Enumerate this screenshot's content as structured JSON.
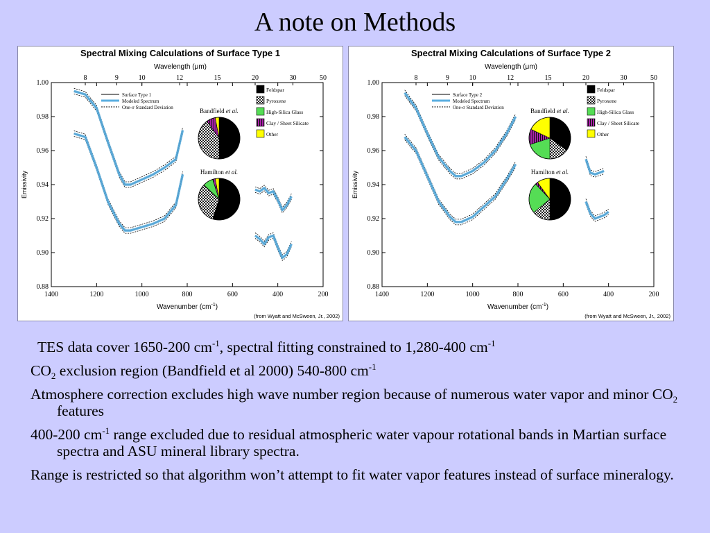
{
  "slide": {
    "title": "A note on Methods"
  },
  "colors": {
    "background": "#ccccff",
    "modeled_line": "#5aaee0",
    "feldspar": "#000000",
    "pyroxene": "#888888",
    "high_silica_glass": "#55dd55",
    "clay_sheet_silicate": "#aa22aa",
    "other": "#ffff00"
  },
  "legend": {
    "surface_prefix": "Surface Type",
    "modeled": "Modeled Spectrum",
    "std": "One-σ Standard Deviation"
  },
  "mineral_legend": [
    "Feldspar",
    "Pyroxene",
    "High-Silica Glass",
    "Clay / Sheet Silicate",
    "Other"
  ],
  "axis": {
    "top_label": "Wavelength (μm)",
    "bottom_label": "Wavenumber (cm",
    "bottom_label_sup": "-1",
    "bottom_label_end": ")",
    "y_label": "Emissivity",
    "source": "(from Wyatt and McSween, Jr., 2002)",
    "bandfield": "Bandfield",
    "hamilton": "Hamilton",
    "et_al": "et al."
  },
  "chart_data": [
    {
      "type": "line",
      "title": "Spectral Mixing Calculations of Surface Type 1",
      "surface_number": "1",
      "xlabel": "Wavenumber (cm-1)",
      "x2label": "Wavelength (μm)",
      "ylabel": "Emissivity",
      "xlim": [
        1400,
        200
      ],
      "ylim": [
        0.88,
        1.0
      ],
      "x_ticks": [
        1400,
        1200,
        1000,
        800,
        600,
        400,
        200
      ],
      "y_ticks": [
        "0.88",
        "0.90",
        "0.92",
        "0.94",
        "0.96",
        "0.98",
        "1.00"
      ],
      "wavelength_ticks": [
        8,
        9,
        10,
        12,
        15,
        20,
        30,
        50
      ],
      "segments": [
        {
          "name": "Bandfield",
          "x": [
            1300,
            1250,
            1200,
            1150,
            1100,
            1075,
            1050,
            1000,
            950,
            900,
            850,
            820
          ],
          "y": [
            0.995,
            0.993,
            0.985,
            0.965,
            0.946,
            0.94,
            0.94,
            0.943,
            0.946,
            0.95,
            0.955,
            0.972
          ]
        },
        {
          "name": "Hamilton",
          "x": [
            1300,
            1250,
            1200,
            1150,
            1100,
            1075,
            1050,
            1000,
            950,
            900,
            850,
            820
          ],
          "y": [
            0.97,
            0.968,
            0.95,
            0.93,
            0.917,
            0.913,
            0.913,
            0.915,
            0.917,
            0.92,
            0.928,
            0.946
          ]
        },
        {
          "name": "Bandfield-low",
          "x": [
            500,
            480,
            460,
            440,
            420,
            400,
            380,
            360,
            340
          ],
          "y": [
            0.937,
            0.936,
            0.938,
            0.935,
            0.936,
            0.931,
            0.925,
            0.928,
            0.933
          ]
        },
        {
          "name": "Hamilton-low",
          "x": [
            500,
            480,
            460,
            440,
            420,
            400,
            380,
            360,
            340
          ],
          "y": [
            0.91,
            0.908,
            0.905,
            0.909,
            0.91,
            0.903,
            0.897,
            0.899,
            0.905
          ]
        }
      ],
      "pies": [
        {
          "name": "Bandfield",
          "values": [
            0.5,
            0.4,
            0.0,
            0.07,
            0.03
          ]
        },
        {
          "name": "Hamilton",
          "values": [
            0.55,
            0.32,
            0.08,
            0.02,
            0.03
          ]
        }
      ]
    },
    {
      "type": "line",
      "title": "Spectral Mixing Calculations of Surface Type 2",
      "surface_number": "2",
      "xlabel": "Wavenumber (cm-1)",
      "x2label": "Wavelength (μm)",
      "ylabel": "Emissivity",
      "xlim": [
        1400,
        200
      ],
      "ylim": [
        0.88,
        1.0
      ],
      "x_ticks": [
        1400,
        1200,
        1000,
        800,
        600,
        400,
        200
      ],
      "y_ticks": [
        "0.88",
        "0.90",
        "0.92",
        "0.94",
        "0.96",
        "0.98",
        "1.00"
      ],
      "wavelength_ticks": [
        8,
        9,
        10,
        12,
        15,
        20,
        30,
        50
      ],
      "segments": [
        {
          "name": "Bandfield",
          "x": [
            1300,
            1250,
            1200,
            1150,
            1100,
            1075,
            1050,
            1000,
            950,
            900,
            850,
            810
          ],
          "y": [
            0.994,
            0.985,
            0.97,
            0.956,
            0.948,
            0.945,
            0.945,
            0.948,
            0.953,
            0.96,
            0.97,
            0.98
          ]
        },
        {
          "name": "Hamilton",
          "x": [
            1300,
            1250,
            1200,
            1150,
            1100,
            1075,
            1050,
            1000,
            950,
            900,
            850,
            810
          ],
          "y": [
            0.968,
            0.96,
            0.945,
            0.93,
            0.921,
            0.918,
            0.918,
            0.921,
            0.927,
            0.933,
            0.943,
            0.952
          ]
        },
        {
          "name": "Bandfield-low",
          "x": [
            500,
            480,
            460,
            440,
            420
          ],
          "y": [
            0.955,
            0.947,
            0.946,
            0.947,
            0.948
          ]
        },
        {
          "name": "Hamilton-low",
          "x": [
            500,
            480,
            460,
            440,
            420,
            400
          ],
          "y": [
            0.93,
            0.923,
            0.92,
            0.921,
            0.922,
            0.924
          ]
        }
      ],
      "pies": [
        {
          "name": "Bandfield",
          "values": [
            0.35,
            0.15,
            0.2,
            0.12,
            0.18
          ]
        },
        {
          "name": "Hamilton",
          "values": [
            0.5,
            0.14,
            0.24,
            0.02,
            0.1
          ]
        }
      ]
    }
  ],
  "bullets": [
    {
      "parts": [
        {
          "t": "TES data cover 1650-200 cm"
        },
        {
          "sup": "-1"
        },
        {
          "t": ", spectral fitting constrained to 1,280-400 cm"
        },
        {
          "sup": "-1"
        }
      ]
    },
    {
      "parts": [
        {
          "t": "CO"
        },
        {
          "sub": "2"
        },
        {
          "t": " exclusion region (Bandfield et al 2000) 540-800 cm"
        },
        {
          "sup": "-1"
        }
      ]
    },
    {
      "parts": [
        {
          "t": "Atmosphere correction excludes high wave number region because of numerous water vapor and minor CO"
        },
        {
          "sub": "2"
        },
        {
          "t": " features"
        }
      ]
    },
    {
      "parts": [
        {
          "t": "400-200 cm"
        },
        {
          "sup": "-1"
        },
        {
          "t": " range excluded due to residual atmospheric water vapour rotational bands in Martian surface spectra and ASU mineral library spectra."
        }
      ]
    },
    {
      "parts": [
        {
          "t": "Range is restricted so that algorithm won’t attempt to fit water vapor features instead of surface mineralogy."
        }
      ]
    }
  ]
}
